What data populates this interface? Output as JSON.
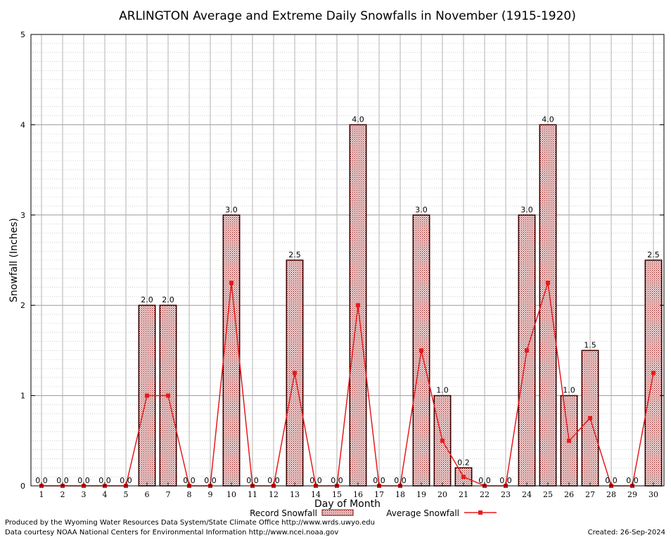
{
  "chart_data": {
    "type": "bar",
    "title": "ARLINGTON Average and Extreme Daily Snowfalls in November (1915-1920)",
    "xlabel": "Day of Month",
    "ylabel": "Snowfall (Inches)",
    "ylim": [
      0,
      5
    ],
    "yticks": [
      "0",
      "1",
      "2",
      "3",
      "4",
      "5"
    ],
    "categories": [
      "1",
      "2",
      "3",
      "4",
      "5",
      "6",
      "7",
      "8",
      "9",
      "10",
      "11",
      "12",
      "13",
      "14",
      "15",
      "16",
      "17",
      "18",
      "19",
      "20",
      "21",
      "22",
      "23",
      "24",
      "25",
      "26",
      "27",
      "28",
      "29",
      "30"
    ],
    "series": [
      {
        "name": "Record Snowfall",
        "type": "bar",
        "values": [
          0,
          0,
          0,
          0,
          0,
          2,
          2,
          0,
          0,
          3,
          0,
          0,
          2.5,
          0,
          0,
          4,
          0,
          0,
          3,
          1,
          0.2,
          0,
          0,
          3,
          4,
          1,
          1.5,
          0,
          0,
          2.5
        ],
        "labels": [
          "0.0",
          "0.0",
          "0.0",
          "0.0",
          "0.0",
          "2.0",
          "2.0",
          "0.0",
          "0.0",
          "3.0",
          "0.0",
          "0.0",
          "2.5",
          "0.0",
          "0.0",
          "4.0",
          "0.0",
          "0.0",
          "3.0",
          "1.0",
          "0.2",
          "0.0",
          "0.0",
          "3.0",
          "4.0",
          "1.0",
          "1.5",
          "0.0",
          "0.0",
          "2.5"
        ],
        "color": "#8b0000"
      },
      {
        "name": "Average Snowfall",
        "type": "line",
        "values": [
          0,
          0,
          0,
          0,
          0,
          1,
          1,
          0,
          0,
          2.25,
          0,
          0,
          1.25,
          0,
          0,
          2,
          0,
          0,
          1.5,
          0.5,
          0.1,
          0,
          0,
          1.5,
          2.25,
          0.5,
          0.75,
          0,
          0,
          1.25
        ],
        "color": "#e8191c"
      }
    ],
    "grid": true,
    "legend_position": "bottom"
  },
  "footer": {
    "producer": "Produced by the Wyoming Water Resources Data System/State Climate Office http://www.wrds.uwyo.edu",
    "courtesy": "Data courtesy NOAA National Centers for Environmental Information http://www.ncei.noaa.gov",
    "created": "Created:  26-Sep-2024"
  }
}
